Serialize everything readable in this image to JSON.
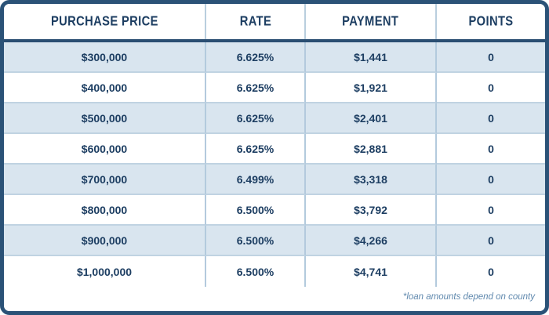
{
  "table": {
    "title": "mortgage-rate-table",
    "headers": {
      "purchase_price": "PURCHASE PRICE",
      "rate": "RATE",
      "payment": "PAYMENT",
      "points": "POINTS"
    },
    "rows": [
      {
        "price": "$300,000",
        "rate": "6.625%",
        "payment": "$1,441",
        "points": "0"
      },
      {
        "price": "$400,000",
        "rate": "6.625%",
        "payment": "$1,921",
        "points": "0"
      },
      {
        "price": "$500,000",
        "rate": "6.625%",
        "payment": "$2,401",
        "points": "0"
      },
      {
        "price": "$600,000",
        "rate": "6.625%",
        "payment": "$2,881",
        "points": "0"
      },
      {
        "price": "$700,000",
        "rate": "6.499%",
        "payment": "$3,318",
        "points": "0"
      },
      {
        "price": "$800,000",
        "rate": "6.500%",
        "payment": "$3,792",
        "points": "0"
      },
      {
        "price": "$900,000",
        "rate": "6.500%",
        "payment": "$4,266",
        "points": "0"
      },
      {
        "price": "$1,000,000",
        "rate": "6.500%",
        "payment": "$4,741",
        "points": "0"
      }
    ],
    "footnote": "*loan amounts depend on county",
    "colors": {
      "border_navy": "#2b5277",
      "header_divider_navy": "#2a4e72",
      "text_navy": "#1d3e62",
      "row_alt_blue": "#d9e5ef",
      "separator_blue": "#b3cadd",
      "footnote_blue": "#6089ae"
    }
  }
}
